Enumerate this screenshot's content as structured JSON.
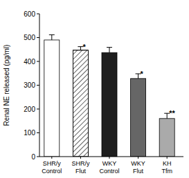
{
  "chart_data": {
    "type": "bar",
    "y_label": "Renal NE released (pg/ml)",
    "categories": [
      "SHR/y\nControl",
      "SHR/y\nFlut",
      "WKY\nControl",
      "WKY\nFlut",
      "KH\nTfm"
    ],
    "values": [
      490,
      447,
      437,
      328,
      160
    ],
    "errors": [
      22,
      15,
      22,
      20,
      22
    ],
    "significance": [
      null,
      "*",
      null,
      "*",
      "**"
    ],
    "colors": [
      "#ffffff",
      "#ffffff",
      "#1e1e1e",
      "#666666",
      "#aaaaaa"
    ],
    "ylim": [
      0,
      600
    ],
    "yticks": [
      0,
      100,
      200,
      300,
      400,
      500,
      600
    ],
    "grid": false
  }
}
